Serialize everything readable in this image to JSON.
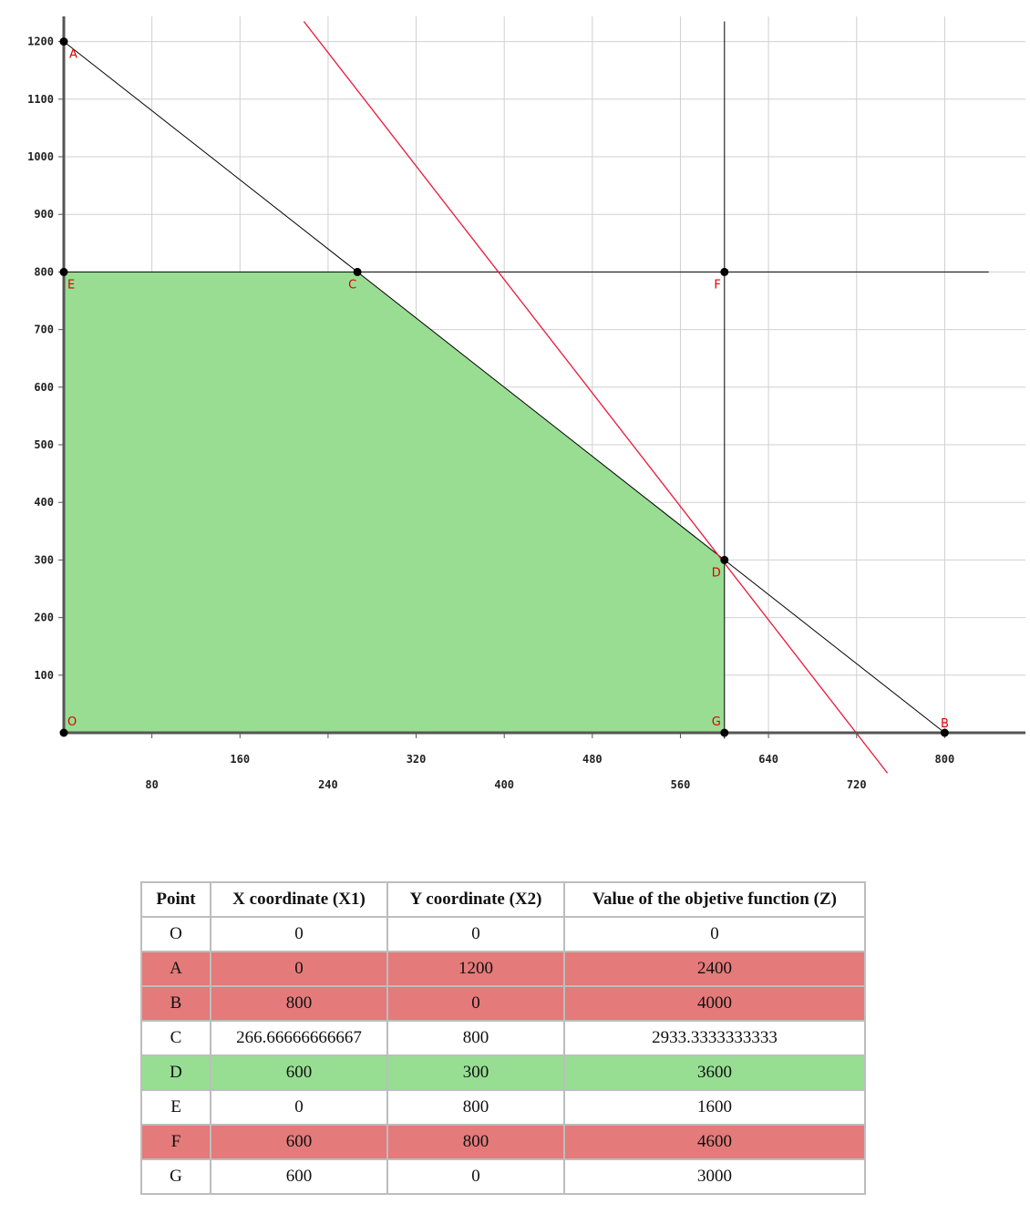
{
  "colors": {
    "feasible_region": "#98dd92",
    "objective_line": "#e8183c",
    "constraint_line": "#000000",
    "point_label": "#e00000",
    "row_not_feasible": "#e47a7a",
    "row_optimal": "#97de93"
  },
  "chart_data": {
    "type": "line",
    "grid": true,
    "xlim": [
      0,
      840
    ],
    "ylim": [
      0,
      1200
    ],
    "x_ticks_upper": [
      "160",
      "320",
      "480",
      "640",
      "800"
    ],
    "x_ticks_lower": [
      "80",
      "240",
      "400",
      "560",
      "720"
    ],
    "y_ticks": [
      "1200",
      "1100",
      "1000",
      "900",
      "800",
      "700",
      "600",
      "500",
      "400",
      "300",
      "200",
      "100"
    ],
    "feasible_region": [
      [
        0,
        0
      ],
      [
        0,
        800
      ],
      [
        266.67,
        800
      ],
      [
        600,
        300
      ],
      [
        600,
        0
      ]
    ],
    "constraints": [
      {
        "points": [
          [
            0,
            1200
          ],
          [
            800,
            0
          ]
        ]
      },
      {
        "points": [
          [
            0,
            800
          ],
          [
            840,
            800
          ]
        ]
      },
      {
        "points": [
          [
            600,
            -10
          ],
          [
            600,
            1235
          ]
        ]
      }
    ],
    "objective_line": {
      "points": [
        [
          218,
          1235
        ],
        [
          748,
          -70
        ]
      ]
    },
    "points": [
      {
        "label": "A",
        "x": 0,
        "y": 1200
      },
      {
        "label": "B",
        "x": 800,
        "y": 0
      },
      {
        "label": "C",
        "x": 266.67,
        "y": 800
      },
      {
        "label": "D",
        "x": 600,
        "y": 300
      },
      {
        "label": "E",
        "x": 0,
        "y": 800
      },
      {
        "label": "F",
        "x": 600,
        "y": 800
      },
      {
        "label": "G",
        "x": 600,
        "y": 0
      },
      {
        "label": "O",
        "x": 0,
        "y": 0
      }
    ]
  },
  "table": {
    "headers": [
      "Point",
      "X coordinate (X1)",
      "Y coordinate (X2)",
      "Value of the objetive function (Z)"
    ],
    "rows": [
      {
        "status": "normal",
        "cells": [
          "O",
          "0",
          "0",
          "0"
        ]
      },
      {
        "status": "not-feasible",
        "cells": [
          "A",
          "0",
          "1200",
          "2400"
        ]
      },
      {
        "status": "not-feasible",
        "cells": [
          "B",
          "800",
          "0",
          "4000"
        ]
      },
      {
        "status": "normal",
        "cells": [
          "C",
          "266.66666666667",
          "800",
          "2933.3333333333"
        ]
      },
      {
        "status": "optimal",
        "cells": [
          "D",
          "600",
          "300",
          "3600"
        ]
      },
      {
        "status": "normal",
        "cells": [
          "E",
          "0",
          "800",
          "1600"
        ]
      },
      {
        "status": "not-feasible",
        "cells": [
          "F",
          "600",
          "800",
          "4600"
        ]
      },
      {
        "status": "normal",
        "cells": [
          "G",
          "600",
          "0",
          "3000"
        ]
      }
    ]
  }
}
